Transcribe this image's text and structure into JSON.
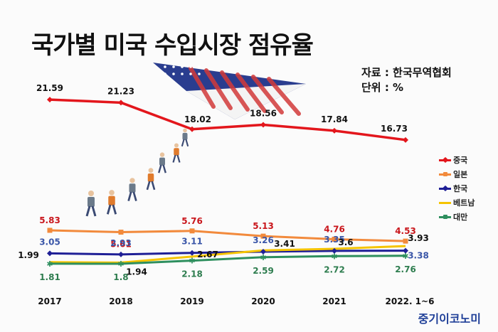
{
  "header": {
    "title": "국가별 미국 수입시장 점유율",
    "source": "자료 : 한국무역협회",
    "unit": "단위 : %"
  },
  "brand": "중기이코노미",
  "chart_data": {
    "type": "line",
    "title": "국가별 미국 수입시장 점유율",
    "categories": [
      "2017",
      "2018",
      "2019",
      "2020",
      "2021",
      "2022. 1~6"
    ],
    "ylim": [
      0,
      24
    ],
    "grid": false,
    "legend_position": "right",
    "series": [
      {
        "name": "중국",
        "color": "#e3161c",
        "marker": "diamond",
        "labelColor": "#111111",
        "values": [
          21.59,
          21.23,
          18.02,
          18.56,
          17.84,
          16.73
        ]
      },
      {
        "name": "일본",
        "color": "#f28a3c",
        "marker": "square",
        "labelColor": "#c9161c",
        "values": [
          5.83,
          5.61,
          5.76,
          5.13,
          4.76,
          4.53
        ]
      },
      {
        "name": "한국",
        "color": "#1f1f96",
        "marker": "diamond",
        "labelColor": "#3a56a8",
        "values": [
          3.05,
          2.93,
          3.11,
          3.26,
          3.35,
          3.38
        ]
      },
      {
        "name": "베트남",
        "color": "#f5c400",
        "marker": "none",
        "labelColor": "#111111",
        "values": [
          1.99,
          1.94,
          2.67,
          3.41,
          3.6,
          3.93
        ]
      },
      {
        "name": "대만",
        "color": "#2e8f5e",
        "marker": "star",
        "labelColor": "#2e7d4f",
        "values": [
          1.81,
          1.8,
          2.18,
          2.59,
          2.72,
          2.76
        ]
      }
    ]
  }
}
